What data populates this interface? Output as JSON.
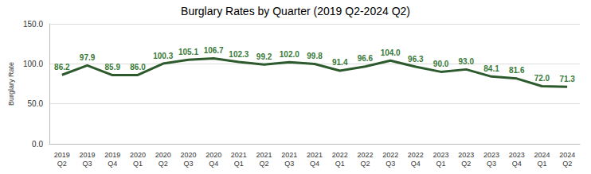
{
  "chart_data": {
    "type": "line",
    "title": "Burglary Rates by Quarter (2019 Q2-2024 Q2)",
    "y_label": "Burglary Rate",
    "categories": [
      "2019 Q2",
      "2019 Q3",
      "2019 Q4",
      "2020 Q1",
      "2020 Q2",
      "2020 Q3",
      "2020 Q4",
      "2021 Q1",
      "2021 Q2",
      "2021 Q3",
      "2021 Q4",
      "2022 Q1",
      "2022 Q2",
      "2022 Q3",
      "2022 Q4",
      "2023 Q1",
      "2023 Q2",
      "2023 Q3",
      "2023 Q4",
      "2024 Q1",
      "2024 Q2"
    ],
    "values": [
      86.2,
      97.9,
      85.9,
      86.0,
      100.3,
      105.1,
      106.7,
      102.3,
      99.2,
      102.0,
      99.8,
      91.4,
      96.6,
      104.0,
      96.3,
      90.0,
      93.0,
      84.1,
      81.6,
      72.0,
      71.3
    ],
    "value_labels": [
      "86.2",
      "97.9",
      "85.9",
      "86.0",
      "100.3",
      "105.1",
      "106.7",
      "102.3",
      "99.2",
      "102.0",
      "99.8",
      "91.4",
      "96.6",
      "104.0",
      "96.3",
      "90.0",
      "93.0",
      "84.1",
      "81.6",
      "72.0",
      "71.3"
    ],
    "color": "#2d5a2d",
    "ylim": [
      0,
      150
    ],
    "yticks": [
      {
        "value": 0,
        "label": "0.0"
      },
      {
        "value": 50,
        "label": "50.0"
      },
      {
        "value": 100,
        "label": "100.0"
      },
      {
        "value": 150,
        "label": "150.0"
      }
    ],
    "grid": true,
    "data_labels": true
  }
}
